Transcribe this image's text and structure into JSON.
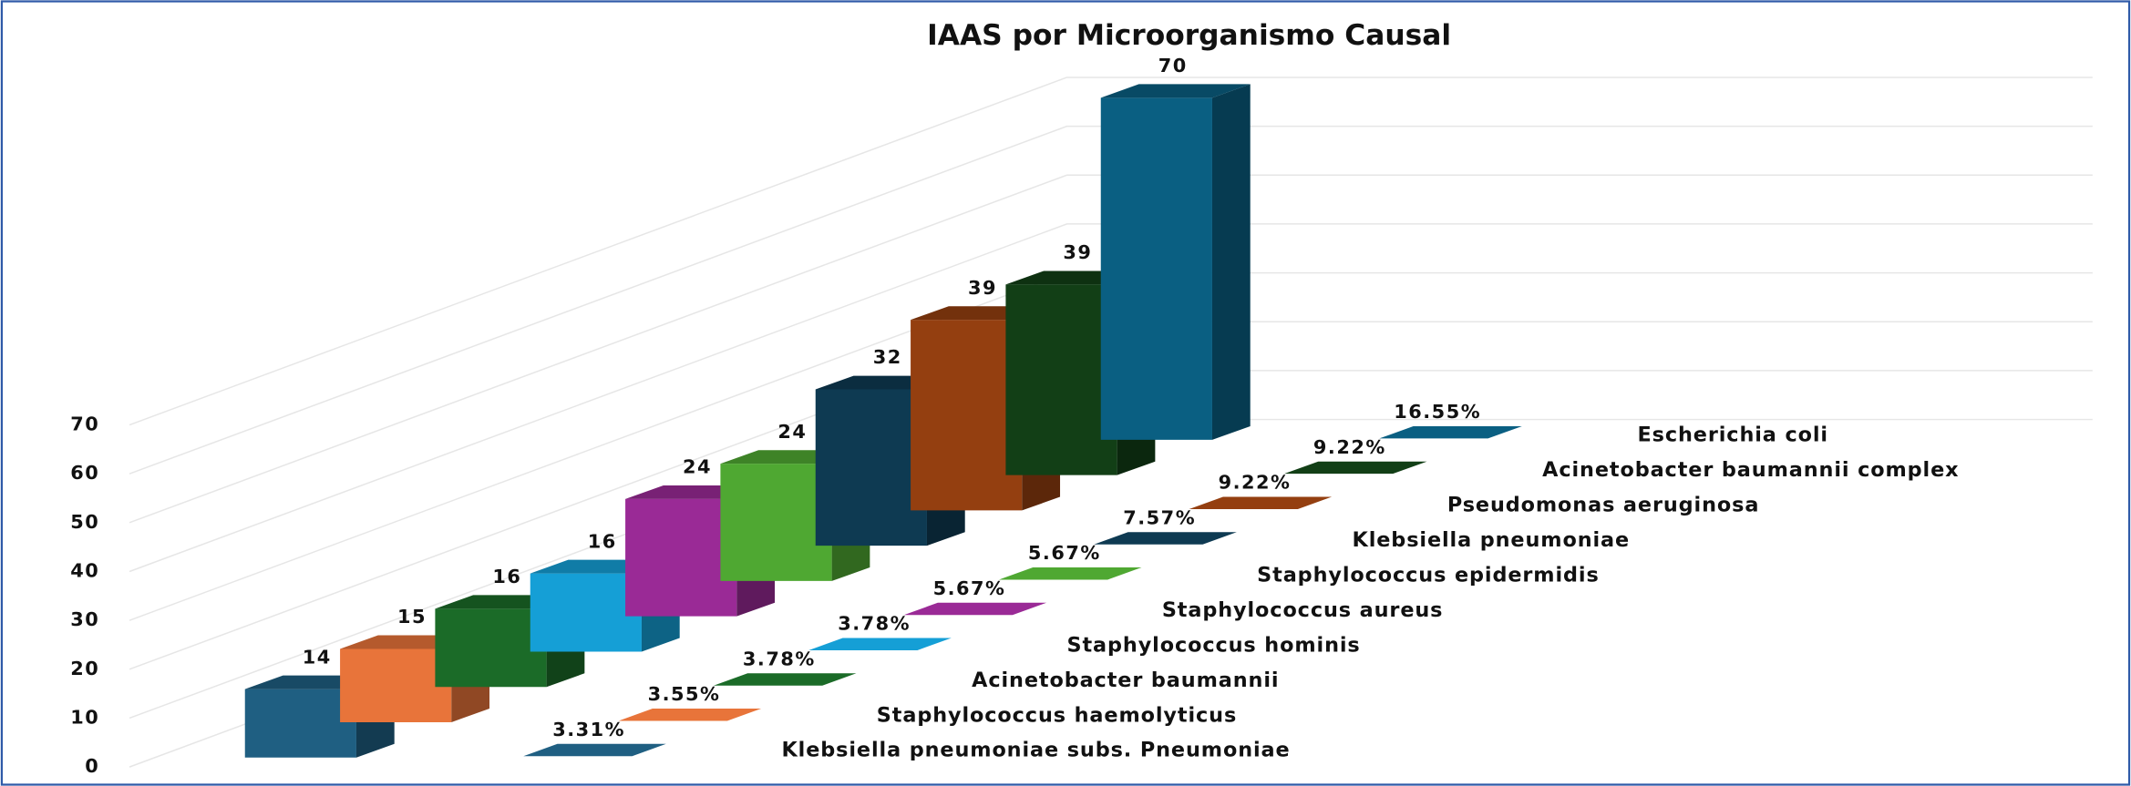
{
  "chart_data": {
    "type": "bar3d",
    "title": "IAAS por Microorganismo Causal",
    "categories": [
      "Klebsiella pneumoniae subs. Pneumoniae",
      "Staphylococcus haemolyticus",
      "Acinetobacter baumannii",
      "Staphylococcus hominis",
      "Staphylococcus aureus",
      "Staphylococcus epidermidis",
      "Klebsiella pneumoniae",
      "Pseudomonas aeruginosa",
      "Acinetobacter baumannii complex",
      "Escherichia coli"
    ],
    "values": [
      14,
      15,
      16,
      16,
      24,
      24,
      32,
      39,
      39,
      70
    ],
    "colors": [
      "#1f5f82",
      "#e8743a",
      "#1b6b28",
      "#159fd6",
      "#9a2a96",
      "#4fa832",
      "#0e3a52",
      "#943f10",
      "#123f16",
      "#0a5f82"
    ],
    "percentages": [
      3.31,
      3.55,
      3.78,
      3.78,
      5.67,
      5.67,
      7.57,
      9.22,
      9.22,
      16.55
    ],
    "percentage_labels": [
      "3.31%",
      "3.55%",
      "3.78%",
      "3.78%",
      "5.67%",
      "5.67%",
      "7.57%",
      "9.22%",
      "9.22%",
      "16.55%"
    ],
    "ylim": [
      0,
      70
    ],
    "yticks": [
      0,
      10,
      20,
      30,
      40,
      50,
      60,
      70
    ],
    "grid": true
  }
}
